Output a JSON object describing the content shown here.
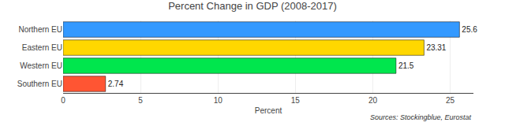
{
  "chart_data": {
    "type": "bar",
    "orientation": "horizontal",
    "title": "Percent Change in GDP (2008-2017)",
    "categories": [
      "Northern EU",
      "Eastern EU",
      "Western EU",
      "Southern EU"
    ],
    "values": [
      25.6,
      23.31,
      21.5,
      2.74
    ],
    "colors": [
      "#3399FF",
      "#FFD700",
      "#00E64D",
      "#FF5533"
    ],
    "xlabel": "Percent",
    "xlim": [
      0,
      26.5
    ],
    "xticks": [
      0,
      5,
      10,
      15,
      20,
      25
    ],
    "grid": true,
    "data_labels": true,
    "annotations": [
      "Sources: Stockingblue, Eurostat"
    ]
  }
}
